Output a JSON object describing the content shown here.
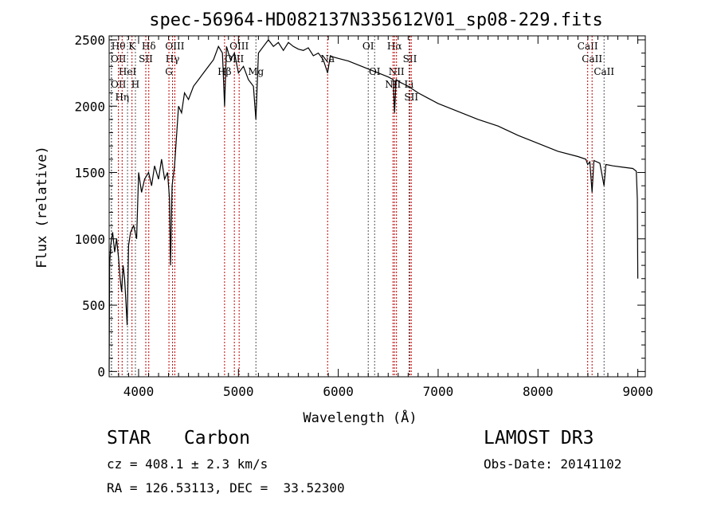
{
  "chart_data": {
    "type": "line",
    "title": "spec-56964-HD082137N335612V01_sp08-229.fits",
    "xlabel": "Wavelength (Å)",
    "ylabel": "Flux (relative)",
    "xlim": [
      3705,
      9075
    ],
    "ylim": [
      -40,
      2530
    ],
    "xticks": [
      4000,
      5000,
      6000,
      7000,
      8000,
      9000
    ],
    "yticks": [
      0,
      500,
      1000,
      1500,
      2000,
      2500
    ],
    "grid": false,
    "series": [
      {
        "name": "spectrum",
        "x": [
          3705,
          3710,
          3720,
          3740,
          3760,
          3780,
          3800,
          3815,
          3830,
          3845,
          3860,
          3875,
          3885,
          3900,
          3920,
          3950,
          3980,
          4000,
          4030,
          4060,
          4100,
          4130,
          4160,
          4200,
          4230,
          4260,
          4290,
          4310,
          4320,
          4335,
          4360,
          4400,
          4430,
          4460,
          4500,
          4550,
          4600,
          4650,
          4700,
          4750,
          4800,
          4840,
          4861,
          4880,
          4920,
          4960,
          5000,
          5050,
          5100,
          5150,
          5175,
          5200,
          5250,
          5300,
          5350,
          5400,
          5450,
          5500,
          5550,
          5600,
          5650,
          5700,
          5750,
          5800,
          5850,
          5893,
          5920,
          5950,
          6000,
          6100,
          6200,
          6300,
          6400,
          6500,
          6550,
          6563,
          6580,
          6620,
          6700,
          6800,
          6900,
          7000,
          7200,
          7400,
          7600,
          7800,
          8000,
          8200,
          8400,
          8480,
          8498,
          8520,
          8542,
          8560,
          8620,
          8662,
          8680,
          8750,
          8850,
          8950,
          8985,
          8995,
          9000
        ],
        "y": [
          0,
          800,
          950,
          1050,
          900,
          1000,
          850,
          700,
          600,
          800,
          700,
          500,
          350,
          950,
          1050,
          1100,
          1000,
          1500,
          1350,
          1450,
          1500,
          1400,
          1550,
          1450,
          1600,
          1450,
          1500,
          1300,
          800,
          1400,
          1550,
          2000,
          1950,
          2100,
          2050,
          2150,
          2200,
          2250,
          2300,
          2350,
          2450,
          2400,
          2000,
          2450,
          2350,
          2400,
          2250,
          2300,
          2200,
          2150,
          1900,
          2400,
          2450,
          2500,
          2450,
          2480,
          2420,
          2480,
          2450,
          2430,
          2420,
          2440,
          2380,
          2400,
          2350,
          2250,
          2380,
          2370,
          2360,
          2340,
          2310,
          2280,
          2250,
          2220,
          2200,
          1950,
          2200,
          2180,
          2150,
          2100,
          2060,
          2020,
          1960,
          1900,
          1850,
          1780,
          1720,
          1660,
          1620,
          1600,
          1560,
          1580,
          1350,
          1590,
          1570,
          1400,
          1560,
          1550,
          1540,
          1530,
          1510,
          1300,
          700
        ]
      }
    ],
    "lines": [
      {
        "label": "Hθ",
        "wave": 3798,
        "color": "#c00000"
      },
      {
        "label": "K",
        "wave": 3934,
        "color": "#c00000"
      },
      {
        "label": "Hδ",
        "wave": 4102,
        "color": "#c00000"
      },
      {
        "label": "OIII",
        "wave": 4363,
        "color": "#c00000"
      },
      {
        "label": "OIII",
        "wave": 5007,
        "color": "#c00000"
      },
      {
        "label": "OI",
        "wave": 6300,
        "color": "#555555"
      },
      {
        "label": "Hα",
        "wave": 6563,
        "color": "#c00000"
      },
      {
        "label": "SII",
        "wave": 6717,
        "color": "#c00000"
      },
      {
        "label": "CaII",
        "wave": 8498,
        "color": "#c00000"
      },
      {
        "label": "OII",
        "wave": 3727,
        "color": "#555555"
      },
      {
        "label": "HeI",
        "wave": 3889,
        "color": "#555555"
      },
      {
        "label": "SII",
        "wave": 4072,
        "color": "#c00000"
      },
      {
        "label": "Hγ",
        "wave": 4340,
        "color": "#c00000"
      },
      {
        "label": "OIII",
        "wave": 4959,
        "color": "#c00000"
      },
      {
        "label": "Na",
        "wave": 5893,
        "color": "#c00000"
      },
      {
        "label": "NII",
        "wave": 6583,
        "color": "#c00000"
      },
      {
        "label": "Li",
        "wave": 6708,
        "color": "#555555"
      },
      {
        "label": "CaII",
        "wave": 8542,
        "color": "#c00000"
      },
      {
        "label": "OII",
        "wave": 3729,
        "color": "#555555"
      },
      {
        "label": "Hη",
        "wave": 3835,
        "color": "#c00000"
      },
      {
        "label": "H",
        "wave": 3968,
        "color": "#555555"
      },
      {
        "label": "G",
        "wave": 4304,
        "color": "#c00000"
      },
      {
        "label": "Hβ",
        "wave": 4861,
        "color": "#c00000"
      },
      {
        "label": "Mg",
        "wave": 5175,
        "color": "#555555"
      },
      {
        "label": "OI",
        "wave": 6364,
        "color": "#555555"
      },
      {
        "label": "NII",
        "wave": 6548,
        "color": "#c00000"
      },
      {
        "label": "SII",
        "wave": 6731,
        "color": "#c00000"
      },
      {
        "label": "CaII",
        "wave": 8662,
        "color": "#555555"
      }
    ]
  },
  "info": {
    "class": "STAR   Carbon",
    "cz": "cz = 408.1 ± 2.3 km/s",
    "coords": "RA = 126.53113, DEC =  33.52300",
    "survey": "LAMOST DR3",
    "obs_date": "Obs-Date: 20141102"
  }
}
